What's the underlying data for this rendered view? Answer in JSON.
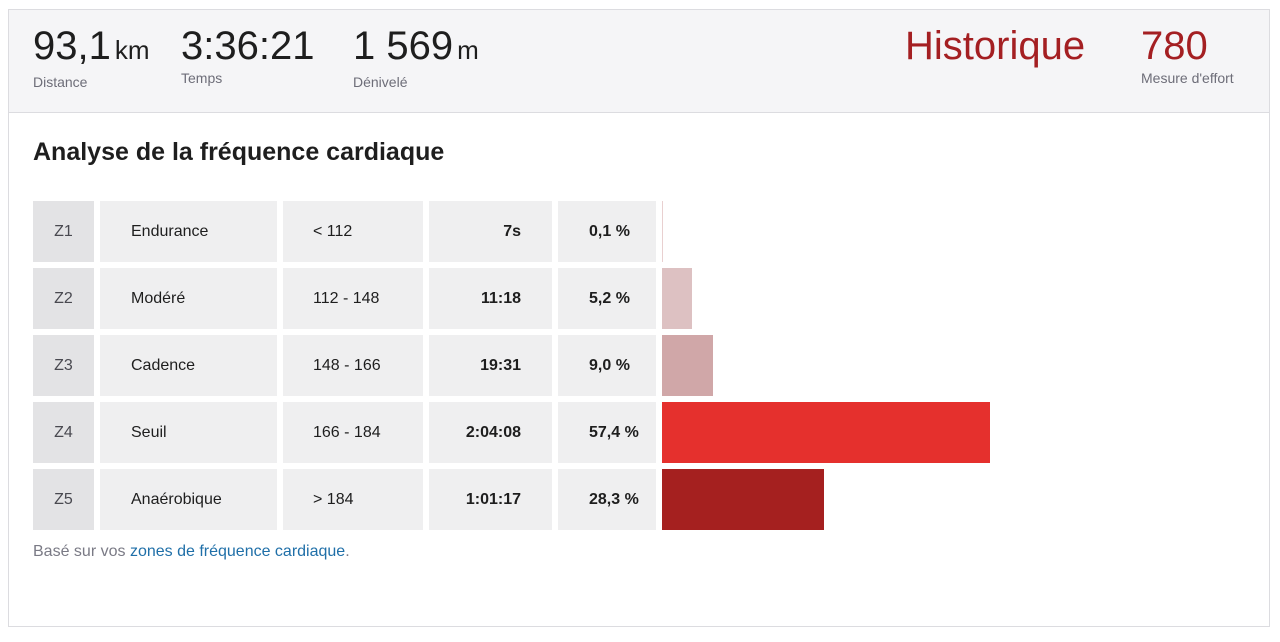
{
  "stats": {
    "distance": {
      "value": "93,1",
      "unit": "km",
      "label": "Distance"
    },
    "time": {
      "value": "3:36:21",
      "label": "Temps"
    },
    "elevation": {
      "value": "1 569",
      "unit": "m",
      "label": "Dénivelé"
    },
    "history": {
      "value": "Historique"
    },
    "effort": {
      "value": "780",
      "label": "Mesure d'effort"
    }
  },
  "section_title": "Analyse de la fréquence cardiaque",
  "zones": [
    {
      "id": "Z1",
      "name": "Endurance",
      "range": "< 112",
      "time": "7s",
      "percent": "0,1 %",
      "share": 0.1,
      "color": "#e9d0d0"
    },
    {
      "id": "Z2",
      "name": "Modéré",
      "range": "112 - 148",
      "time": "11:18",
      "percent": "5,2 %",
      "share": 5.2,
      "color": "#ddc1c2"
    },
    {
      "id": "Z3",
      "name": "Cadence",
      "range": "148 - 166",
      "time": "19:31",
      "percent": "9,0 %",
      "share": 9.0,
      "color": "#d0a7a8"
    },
    {
      "id": "Z4",
      "name": "Seuil",
      "range": "166 - 184",
      "time": "2:04:08",
      "percent": "57,4 %",
      "share": 57.4,
      "color": "#e5302d"
    },
    {
      "id": "Z5",
      "name": "Anaérobique",
      "range": "> 184",
      "time": "1:01:17",
      "percent": "28,3 %",
      "share": 28.3,
      "color": "#a5201f"
    }
  ],
  "footnote": {
    "prefix": "Basé sur vos ",
    "link": "zones de fréquence cardiaque",
    "suffix": "."
  }
}
